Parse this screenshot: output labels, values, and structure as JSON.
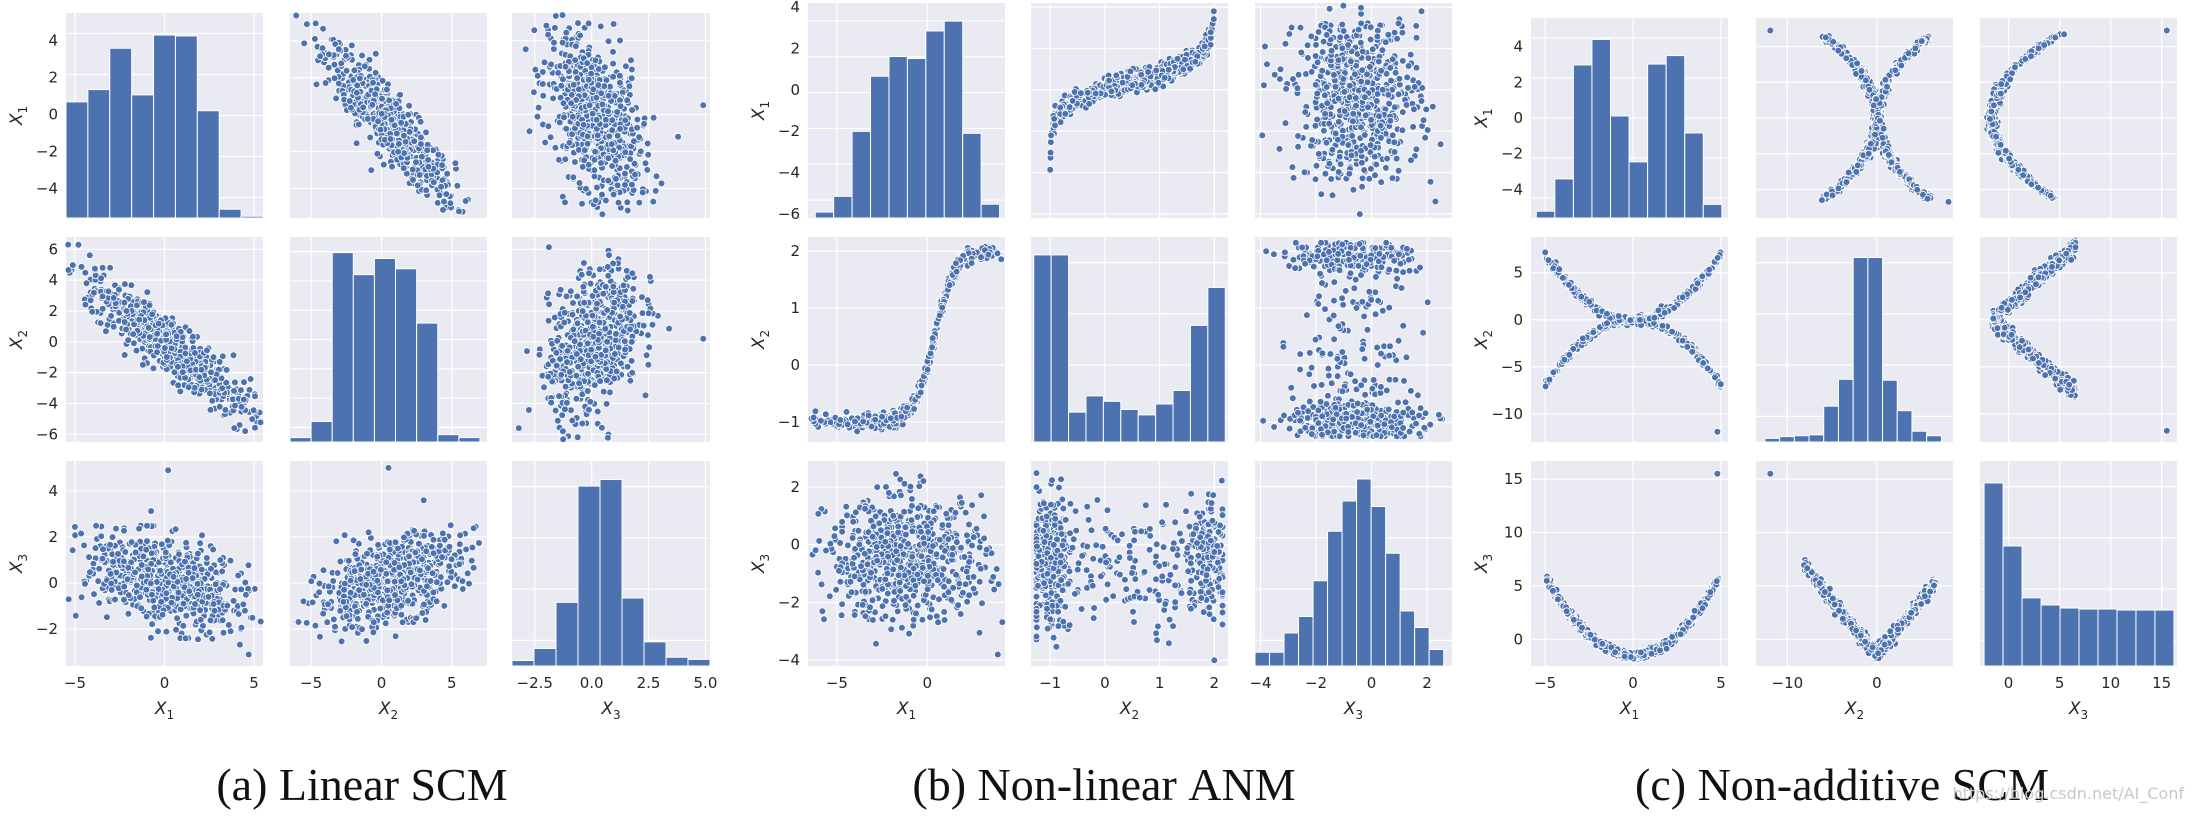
{
  "figure": {
    "caption_a_prefix": "(a) Linear ",
    "caption_a_sc": "SCM",
    "caption_b_prefix": "(b) Non-linear ",
    "caption_b_sc": "ANM",
    "caption_c_prefix": "(c) Non-additive ",
    "caption_c_sc": "SCM",
    "watermark": "https://blog.csdn.net/AI_Conf",
    "colors": {
      "panel_bg": "#eaeaf2",
      "grid": "#ffffff",
      "marker": "#4c72b0",
      "marker_edge": "#ffffff"
    }
  },
  "chart_data": [
    {
      "type": "pairplot",
      "name": "Linear SCM",
      "variables": [
        "X_1",
        "X_2",
        "X_3"
      ],
      "axes": {
        "x_ranges": [
          [
            -5.5,
            5.5
          ],
          [
            -6.5,
            7.5
          ],
          [
            -3.5,
            5.2
          ]
        ],
        "y_ranges": [
          [
            -5.6,
            5.5
          ],
          [
            -6.5,
            6.8
          ],
          [
            -3.6,
            5.3
          ]
        ],
        "x_ticks": [
          [
            -5,
            0,
            5
          ],
          [
            -5,
            0,
            5
          ],
          [
            -2.5,
            0.0,
            2.5,
            5.0
          ]
        ],
        "x_tick_labels": [
          [
            "−5",
            "0",
            "5"
          ],
          [
            "−5",
            "0",
            "5"
          ],
          [
            "−2.5",
            "0.0",
            "2.5",
            "5.0"
          ]
        ],
        "y_ticks": [
          [
            -4,
            -2,
            0,
            2,
            4
          ],
          [
            -6,
            -4,
            -2,
            0,
            2,
            4,
            6
          ],
          [
            -2,
            0,
            2,
            4
          ]
        ],
        "y_tick_labels": [
          [
            "−4",
            "−2",
            "0",
            "2",
            "4"
          ],
          [
            "−6",
            "−4",
            "−2",
            "0",
            "2",
            "4",
            "6"
          ],
          [
            "−2",
            "0",
            "2",
            "4"
          ]
        ],
        "hist_max": [
          4.9,
          6.5,
          5.0
        ]
      },
      "histograms": [
        [
          -5.5,
          -0.5,
          5.5,
          1.0,
          1.7,
          4.05,
          1.4,
          4.8,
          4.75,
          0.5,
          -5.1,
          -5.5
        ],
        [
          -6.5,
          -5.9,
          7.0,
          -6.2,
          -5.1,
          6.4,
          4.9,
          6.0,
          5.3,
          1.6,
          -6.0,
          -6.2
        ],
        [
          -3.5,
          -3.1,
          5.2,
          -3.35,
          -2.8,
          -0.7,
          4.6,
          4.9,
          -0.5,
          -2.5,
          -3.2,
          -3.3
        ]
      ],
      "scatter": [
        {
          "r": 0,
          "c": 1,
          "kind": "linear",
          "slope": -0.85,
          "noise": 0.9,
          "x_mean": 0.6,
          "x_sd": 2.3,
          "outliers": [
            [
              4.9,
              -4.8
            ],
            [
              -5.3,
              4.9
            ]
          ]
        },
        {
          "r": 0,
          "c": 2,
          "kind": "linear",
          "slope": -0.95,
          "noise": 2.0,
          "x_mean": 0.1,
          "x_sd": 1.0,
          "outliers": [
            [
              4.9,
              0.5
            ],
            [
              3.8,
              -1.2
            ]
          ]
        },
        {
          "r": 1,
          "c": 0,
          "kind": "linear",
          "slope": -0.9,
          "noise": 0.95,
          "x_mean": 0.2,
          "x_sd": 2.3,
          "outliers": [
            [
              3.9,
              -5.6
            ],
            [
              -4.8,
              6.3
            ]
          ]
        },
        {
          "r": 1,
          "c": 2,
          "kind": "linear",
          "slope": 0.9,
          "noise": 2.2,
          "x_mean": 0.1,
          "x_sd": 1.0,
          "outliers": [
            [
              4.9,
              0.2
            ],
            [
              -3.2,
              -5.6
            ]
          ]
        },
        {
          "r": 2,
          "c": 0,
          "kind": "linear",
          "slope": -0.2,
          "noise": 0.9,
          "x_mean": 0.2,
          "x_sd": 2.3,
          "outliers": [
            [
              0.2,
              4.9
            ],
            [
              4.7,
              -3.1
            ]
          ]
        },
        {
          "r": 2,
          "c": 1,
          "kind": "linear",
          "slope": 0.19,
          "noise": 0.85,
          "x_mean": 0.5,
          "x_sd": 2.5,
          "outliers": [
            [
              0.5,
              5.0
            ],
            [
              3.0,
              3.6
            ]
          ]
        }
      ]
    },
    {
      "type": "pairplot",
      "name": "Non-linear ANM",
      "variables": [
        "X_1",
        "X_2",
        "X_3"
      ],
      "axes": {
        "x_ranges": [
          [
            -6.6,
            4.3
          ],
          [
            -1.35,
            2.25
          ],
          [
            -4.2,
            2.9
          ]
        ],
        "y_ranges": [
          [
            -6.2,
            4.2
          ],
          [
            -1.35,
            2.25
          ],
          [
            -4.2,
            2.9
          ]
        ],
        "x_ticks": [
          [
            -5,
            0
          ],
          [
            -1,
            0,
            1,
            2
          ],
          [
            -4,
            -2,
            0,
            2
          ]
        ],
        "x_tick_labels": [
          [
            "−5",
            "0"
          ],
          [
            "−1",
            "0",
            "1",
            "2"
          ],
          [
            "−4",
            "−2",
            "0",
            "2"
          ]
        ],
        "y_ticks": [
          [
            -6,
            -4,
            -2,
            0,
            2,
            4
          ],
          [
            -1,
            0,
            1,
            2
          ],
          [
            -4,
            -2,
            0,
            2
          ]
        ],
        "y_tick_labels": [
          [
            "−6",
            "−4",
            "−2",
            "0",
            "2",
            "4"
          ],
          [
            "−1",
            "0",
            "1",
            "2"
          ],
          [
            "−4",
            "−2",
            "0",
            "2"
          ]
        ],
        "hist_max": [
          3.9,
          2.2,
          2.85
        ]
      },
      "histograms": [
        [
          -6.2,
          -5.3,
          4.0,
          -5.9,
          -5.1,
          -1.8,
          1.0,
          2.0,
          1.9,
          3.3,
          3.8,
          -1.9,
          -5.5
        ],
        [
          -1.3,
          -1.0,
          2.2,
          2.1,
          2.1,
          -0.8,
          -0.5,
          -0.6,
          -0.75,
          -0.85,
          -0.65,
          -0.4,
          0.8,
          1.5
        ],
        [
          -4.2,
          -3.8,
          2.6,
          -3.7,
          -3.7,
          -3.0,
          -2.4,
          -1.1,
          0.7,
          1.8,
          2.6,
          1.6,
          -0.1,
          -2.2,
          -2.8,
          -3.6
        ]
      ],
      "scatter": [
        {
          "r": 0,
          "c": 1,
          "kind": "cubic_inv",
          "x_lo": -1.25,
          "x_hi": 2.1,
          "noise": 0.25,
          "outliers": []
        },
        {
          "r": 0,
          "c": 2,
          "kind": "cloud",
          "x_mean": -0.5,
          "x_sd": 1.1,
          "y_mean": -0.3,
          "y_sd": 2.0,
          "outliers": [
            [
              2.3,
              -5.4
            ],
            [
              1.8,
              3.8
            ]
          ]
        },
        {
          "r": 1,
          "c": 0,
          "kind": "sigmoid",
          "x_mean": -1.0,
          "x_sd": 2.2,
          "noise": 0.06,
          "outliers": []
        },
        {
          "r": 1,
          "c": 2,
          "kind": "bimodal_cloud",
          "x_mean": -0.6,
          "x_sd": 1.1,
          "outliers": [
            [
              -3.8,
              2.0
            ],
            [
              1.9,
              -1.1
            ]
          ]
        },
        {
          "r": 2,
          "c": 0,
          "kind": "cloud",
          "x_mean": -1.1,
          "x_sd": 2.2,
          "y_mean": -0.5,
          "y_sd": 1.05,
          "outliers": [
            [
              3.9,
              -3.8
            ]
          ]
        },
        {
          "r": 2,
          "c": 1,
          "kind": "bimodal_x",
          "y_mean": -0.5,
          "y_sd": 1.0,
          "outliers": [
            [
              2.0,
              -4.0
            ]
          ]
        }
      ]
    },
    {
      "type": "pairplot",
      "name": "Non-additive SCM",
      "variables": [
        "X_1",
        "X_2",
        "X_3"
      ],
      "axes": {
        "x_ranges": [
          [
            -5.8,
            5.4
          ],
          [
            -13.5,
            8.5
          ],
          [
            -2.8,
            16.5
          ]
        ],
        "y_ranges": [
          [
            -5.6,
            5.6
          ],
          [
            -13.0,
            8.8
          ],
          [
            -2.5,
            16.7
          ]
        ],
        "x_ticks": [
          [
            -5,
            0,
            5
          ],
          [
            -10,
            0
          ],
          [
            0,
            5,
            10,
            15
          ]
        ],
        "x_tick_labels": [
          [
            "−5",
            "0",
            "5"
          ],
          [
            "−10",
            "0"
          ],
          [
            "0",
            "5",
            "10",
            "15"
          ]
        ],
        "y_ticks": [
          [
            -4,
            -2,
            0,
            2,
            4
          ],
          [
            -10,
            -5,
            0,
            5
          ],
          [
            0,
            5,
            10,
            15
          ]
        ],
        "y_tick_labels": [
          [
            "−4",
            "−2",
            "0",
            "2",
            "4"
          ],
          [
            "−10",
            "−5",
            "0",
            "5"
          ],
          [
            "0",
            "5",
            "10",
            "15"
          ]
        ],
        "hist_max": [
          5.0,
          7.5,
          15.6
        ]
      },
      "histograms": [
        [
          -5.5,
          -4.55,
          5.05,
          -5.2,
          -3.3,
          3.4,
          4.9,
          0.4,
          -2.3,
          3.45,
          3.95,
          -0.6,
          -4.8
        ],
        [
          -12.5,
          -9.5,
          7.2,
          -12.6,
          -12.4,
          -12.3,
          -12.2,
          -9.0,
          -6.0,
          7.6,
          7.6,
          -6.1,
          -9.5,
          -11.8,
          -12.3
        ],
        [
          -2.4,
          -0.5,
          16.2,
          15.5,
          9.3,
          4.2,
          3.5,
          3.2,
          3.1,
          3.1,
          3.0,
          3.0,
          3.0
        ]
      ],
      "scatter": [
        {
          "r": 0,
          "c": 1,
          "kind": "x_shape_inv",
          "noise": 0.15,
          "outliers": [
            [
              -11.9,
              4.9
            ],
            [
              8.0,
              -4.7
            ]
          ]
        },
        {
          "r": 0,
          "c": 2,
          "kind": "c_shape",
          "noise": 0.2,
          "outliers": [
            [
              15.5,
              4.9
            ]
          ]
        },
        {
          "r": 1,
          "c": 0,
          "kind": "x_shape",
          "noise": 0.2,
          "outliers": [
            [
              4.8,
              -11.9
            ]
          ]
        },
        {
          "r": 1,
          "c": 2,
          "kind": "lt_shape",
          "noise": 0.4,
          "outliers": [
            [
              15.5,
              -11.8
            ]
          ]
        },
        {
          "r": 2,
          "c": 0,
          "kind": "u_shape",
          "noise": 0.2,
          "outliers": [
            [
              4.8,
              15.5
            ]
          ]
        },
        {
          "r": 2,
          "c": 1,
          "kind": "v_shape",
          "noise": 0.3,
          "outliers": [
            [
              -11.9,
              15.5
            ]
          ]
        }
      ]
    }
  ]
}
